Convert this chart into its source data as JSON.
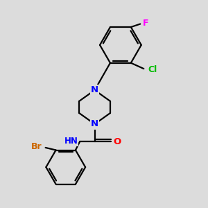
{
  "background_color": "#dcdcdc",
  "bond_color": "#000000",
  "bond_width": 1.6,
  "atom_colors": {
    "N": "#0000ff",
    "O": "#ff0000",
    "Cl": "#00bb00",
    "Br": "#cc6600",
    "F": "#ff00ff",
    "C": "#000000",
    "H": "#555555"
  },
  "font_size": 8.5,
  "figsize": [
    3.0,
    3.0
  ],
  "dpi": 100
}
